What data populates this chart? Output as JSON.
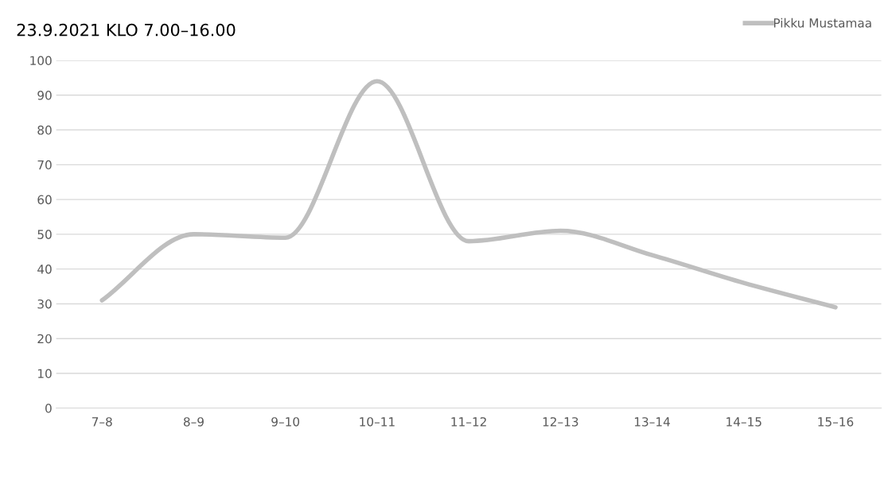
{
  "chart_data": {
    "type": "line",
    "title": "23.9.2021 KLO 7.00–16.00",
    "categories": [
      "7–8",
      "8–9",
      "9–10",
      "10–11",
      "11–12",
      "12–13",
      "13–14",
      "14–15",
      "15–16"
    ],
    "series": [
      {
        "name": "Pikku Mustamaa",
        "color": "#bfbfbf",
        "values": [
          31,
          50,
          49,
          94,
          48,
          51,
          44,
          36,
          29
        ]
      }
    ],
    "ylim": [
      0,
      100
    ],
    "yticks": [
      0,
      10,
      20,
      30,
      40,
      50,
      60,
      70,
      80,
      90,
      100
    ],
    "grid": "y",
    "legend": "top right",
    "marker": "none",
    "line_style": "solid"
  }
}
